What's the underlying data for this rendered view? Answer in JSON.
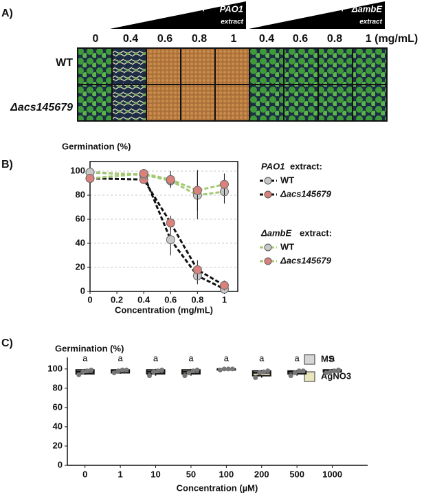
{
  "panel_a": {
    "label": "A)",
    "groups": [
      {
        "prefix": "+",
        "strain": "PAO1",
        "note": "extract"
      },
      {
        "prefix": "+",
        "strain": "ΔambE",
        "note": "extract"
      }
    ],
    "concentrations": [
      "0",
      "0.4",
      "0.6",
      "0.8",
      "1",
      "0.4",
      "0.6",
      "0.8",
      "1 (mg/mL)"
    ],
    "rows": [
      "WT",
      "Δacs145679"
    ]
  },
  "chart_data": [
    {
      "type": "line",
      "panel_label": "B)",
      "y_label": "Germination (%)",
      "x_label": "Concentration (mg/mL)",
      "x": [
        0,
        0.4,
        0.6,
        0.8,
        1
      ],
      "xlim": [
        0,
        1.1
      ],
      "xticks": [
        0,
        0.2,
        0.4,
        0.6,
        0.8,
        1
      ],
      "ylim": [
        0,
        108
      ],
      "yticks": [
        0,
        20,
        40,
        60,
        80,
        100
      ],
      "grid": true,
      "series_groups": [
        {
          "title": "PAO1",
          "title_suffix": "extract:",
          "series": [
            {
              "name": "WT",
              "color": "#111111",
              "marker_color": "#c8c8c8",
              "values": [
                99,
                97,
                43,
                13,
                2
              ],
              "errors": [
                2,
                3,
                13,
                7,
                2
              ]
            },
            {
              "name": "Δacs145679",
              "color": "#111111",
              "marker_color": "#d9817a",
              "values": [
                94,
                93,
                57,
                18,
                5
              ],
              "errors": [
                2,
                2,
                6,
                8,
                4
              ]
            }
          ]
        },
        {
          "title": "ΔambE",
          "title_suffix": "extract:",
          "series": [
            {
              "name": "WT",
              "color": "#a3c972",
              "marker_color": "#c8c8c8",
              "values": [
                99,
                97,
                92,
                80,
                83
              ],
              "errors": [
                2,
                2,
                5,
                20,
                10
              ]
            },
            {
              "name": "Δacs145679",
              "color": "#a3c972",
              "marker_color": "#d9817a",
              "values": [
                94,
                98,
                93,
                84,
                89
              ],
              "errors": [
                2,
                2,
                7,
                17,
                9
              ]
            }
          ]
        }
      ]
    },
    {
      "type": "box",
      "panel_label": "C)",
      "y_label": "Germination (%)",
      "x_label": "Concentration (µM)",
      "categories": [
        "0",
        "1",
        "10",
        "50",
        "100",
        "200",
        "500",
        "1000"
      ],
      "ylim": [
        0,
        112
      ],
      "yticks": [
        0,
        20,
        40,
        60,
        80,
        100
      ],
      "annotations": [
        "a",
        "a",
        "a",
        "a",
        "a",
        "a",
        "a",
        "a"
      ],
      "series": [
        {
          "name": "MS",
          "color": "#d6d6d6",
          "median": [
            97,
            null,
            null,
            null,
            null,
            null,
            null,
            null
          ],
          "q1": [
            95,
            null,
            null,
            null,
            null,
            null,
            null,
            null
          ],
          "q3": [
            99,
            null,
            null,
            null,
            null,
            null,
            null,
            null
          ],
          "low": [
            94,
            null,
            null,
            null,
            null,
            null,
            null,
            null
          ],
          "high": [
            100,
            null,
            null,
            null,
            null,
            null,
            null,
            null
          ],
          "points": [
            [
              94,
              97,
              98,
              99
            ],
            null,
            null,
            null,
            null,
            null,
            null,
            null
          ]
        },
        {
          "name": "AgNO3",
          "color": "#e8e4bc",
          "median": [
            null,
            98,
            97,
            97,
            100,
            96,
            97,
            98
          ],
          "q1": [
            null,
            96,
            95,
            95,
            99,
            93,
            95,
            97
          ],
          "q3": [
            null,
            99,
            99,
            99,
            100,
            98,
            98,
            99
          ],
          "low": [
            null,
            95,
            93,
            93,
            99,
            91,
            93,
            96
          ],
          "high": [
            null,
            100,
            100,
            100,
            100,
            99,
            99,
            100
          ],
          "points": [
            null,
            [
              96,
              98,
              99,
              99
            ],
            [
              93,
              97,
              98,
              99
            ],
            [
              93,
              96,
              98,
              99
            ],
            [
              99,
              100,
              100,
              100
            ],
            [
              91,
              96,
              97,
              98
            ],
            [
              93,
              96,
              98,
              98
            ],
            [
              96,
              97,
              98,
              99
            ]
          ]
        }
      ]
    }
  ]
}
